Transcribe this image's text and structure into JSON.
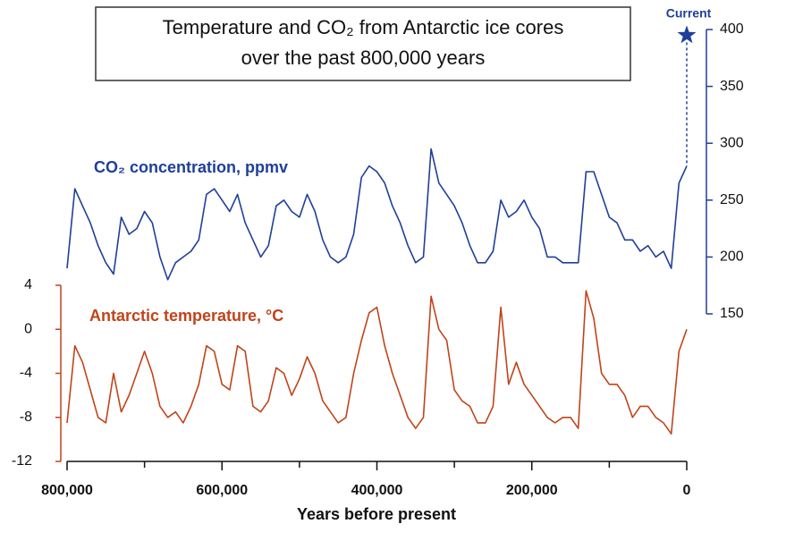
{
  "chart_data": {
    "type": "line",
    "title": [
      "Temperature and CO₂ from Antarctic ice cores",
      "over the past 800,000 years"
    ],
    "xlabel": "Years before present",
    "x": [
      800000,
      790000,
      780000,
      770000,
      760000,
      750000,
      740000,
      730000,
      720000,
      710000,
      700000,
      690000,
      680000,
      670000,
      660000,
      650000,
      640000,
      630000,
      620000,
      610000,
      600000,
      590000,
      580000,
      570000,
      560000,
      550000,
      540000,
      530000,
      520000,
      510000,
      500000,
      490000,
      480000,
      470000,
      460000,
      450000,
      440000,
      430000,
      420000,
      410000,
      400000,
      390000,
      380000,
      370000,
      360000,
      350000,
      340000,
      330000,
      320000,
      310000,
      300000,
      290000,
      280000,
      270000,
      260000,
      250000,
      240000,
      230000,
      220000,
      210000,
      200000,
      190000,
      180000,
      170000,
      160000,
      150000,
      140000,
      130000,
      120000,
      110000,
      100000,
      90000,
      80000,
      70000,
      60000,
      50000,
      40000,
      30000,
      20000,
      10000,
      0
    ],
    "xlim": [
      800000,
      0
    ],
    "xticks": [
      {
        "value": 800000,
        "label": "800,000"
      },
      {
        "value": 600000,
        "label": "600,000"
      },
      {
        "value": 400000,
        "label": "400,000"
      },
      {
        "value": 200000,
        "label": "200,000"
      },
      0
    ],
    "xminorticks": [
      700000,
      500000,
      300000,
      100000
    ],
    "ylim": [
      -12,
      4
    ],
    "yticks": [
      4,
      0,
      -4,
      -8,
      -12
    ],
    "y2lim": [
      150,
      400
    ],
    "y2ticks": [
      400,
      350,
      300,
      250,
      200,
      150
    ],
    "series": [
      {
        "name": "CO₂ concentration, ppmv",
        "color": "#1f3f99",
        "axis": "y2",
        "values": [
          190,
          260,
          245,
          230,
          210,
          195,
          185,
          235,
          220,
          225,
          240,
          230,
          200,
          180,
          195,
          200,
          205,
          215,
          255,
          260,
          250,
          240,
          255,
          230,
          215,
          200,
          210,
          245,
          250,
          240,
          235,
          255,
          240,
          215,
          200,
          195,
          200,
          220,
          270,
          280,
          275,
          265,
          245,
          230,
          210,
          195,
          200,
          295,
          265,
          255,
          245,
          230,
          210,
          195,
          195,
          205,
          250,
          235,
          240,
          250,
          235,
          225,
          200,
          200,
          195,
          195,
          195,
          275,
          275,
          255,
          235,
          230,
          215,
          215,
          205,
          210,
          200,
          205,
          190,
          265,
          280
        ]
      },
      {
        "name": "Antarctic temperature, °C",
        "color": "#c0441a",
        "values": [
          -8.5,
          -1.5,
          -3,
          -5.5,
          -8,
          -8.5,
          -4,
          -7.5,
          -6,
          -4,
          -2,
          -4,
          -7,
          -8,
          -7.5,
          -8.5,
          -7,
          -5,
          -1.5,
          -2,
          -5,
          -5.5,
          -1.5,
          -2,
          -7,
          -7.5,
          -6.5,
          -3.5,
          -4,
          -6,
          -4.5,
          -2.5,
          -4,
          -6.5,
          -7.5,
          -8.5,
          -8,
          -4,
          -1,
          1.5,
          2,
          -1.5,
          -4,
          -6,
          -8,
          -9,
          -8,
          3,
          0,
          -1,
          -5.5,
          -6.5,
          -7,
          -8.5,
          -8.5,
          -7,
          2,
          -5,
          -3,
          -5,
          -6,
          -7,
          -8,
          -8.5,
          -8,
          -8,
          -9,
          3.5,
          1,
          -4,
          -5,
          -5,
          -6,
          -8,
          -7,
          -7,
          -8,
          -8.5,
          -9.5,
          -2,
          0
        ]
      }
    ],
    "current": {
      "label": "Current",
      "value": 395,
      "color": "#1f3f99"
    }
  }
}
